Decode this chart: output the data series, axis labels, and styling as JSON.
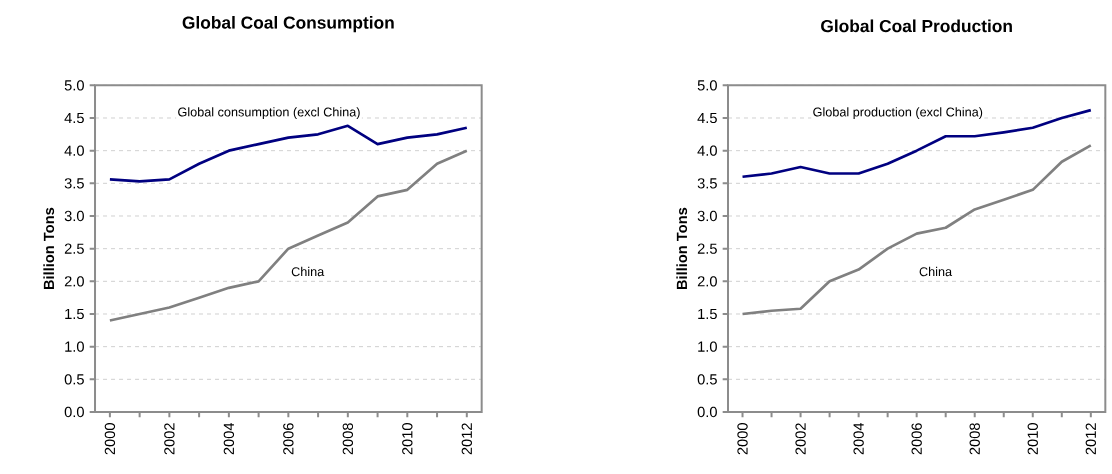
{
  "chart_data": [
    {
      "type": "line",
      "title": "Global Coal Consumption",
      "ylabel": "Billion Tons",
      "categories": [
        "2000",
        null,
        "2002",
        null,
        "2004",
        null,
        "2006",
        null,
        "2008",
        null,
        "2010",
        null,
        "2012"
      ],
      "ylim": [
        0,
        5
      ],
      "yticks": [
        {
          "value": 0,
          "label": "0.0"
        },
        {
          "value": 0.5,
          "label": "0.5"
        },
        {
          "value": 1,
          "label": "1.0"
        },
        {
          "value": 1.5,
          "label": "1.5"
        },
        {
          "value": 2,
          "label": "2.0"
        },
        {
          "value": 2.5,
          "label": "2.5"
        },
        {
          "value": 3,
          "label": "3.0"
        },
        {
          "value": 3.5,
          "label": "3.5"
        },
        {
          "value": 4,
          "label": "4.0"
        },
        {
          "value": 4.5,
          "label": "4.5"
        },
        {
          "value": 5,
          "label": "5.0"
        }
      ],
      "grid": "y",
      "series": [
        {
          "name": "Global consumption (excl China)",
          "color": "#000080",
          "values": [
            3.56,
            3.53,
            3.56,
            3.8,
            4.0,
            4.1,
            4.2,
            4.25,
            4.38,
            4.1,
            4.2,
            4.25,
            4.35
          ]
        },
        {
          "name": "China",
          "color": "#808080",
          "values": [
            1.4,
            1.5,
            1.6,
            1.75,
            1.9,
            2.0,
            2.5,
            2.7,
            2.9,
            3.3,
            3.4,
            3.8,
            4.0
          ]
        }
      ]
    },
    {
      "type": "line",
      "title": "Global Coal Production",
      "ylabel": "Billion Tons",
      "categories": [
        "2000",
        null,
        "2002",
        null,
        "2004",
        null,
        "2006",
        null,
        "2008",
        null,
        "2010",
        null,
        "2012"
      ],
      "ylim": [
        0,
        5
      ],
      "yticks": [
        {
          "value": 0,
          "label": "0.0"
        },
        {
          "value": 0.5,
          "label": "0.5"
        },
        {
          "value": 1,
          "label": "1.0"
        },
        {
          "value": 1.5,
          "label": "1.5"
        },
        {
          "value": 2,
          "label": "2.0"
        },
        {
          "value": 2.5,
          "label": "2.5"
        },
        {
          "value": 3,
          "label": "3.0"
        },
        {
          "value": 3.5,
          "label": "3.5"
        },
        {
          "value": 4,
          "label": "4.0"
        },
        {
          "value": 4.5,
          "label": "4.5"
        },
        {
          "value": 5,
          "label": "5.0"
        }
      ],
      "grid": "y",
      "series": [
        {
          "name": "Global production (excl China)",
          "color": "#000080",
          "values": [
            3.6,
            3.65,
            3.75,
            3.65,
            3.65,
            3.8,
            4.0,
            4.22,
            4.22,
            4.28,
            4.35,
            4.5,
            4.62
          ]
        },
        {
          "name": "China",
          "color": "#808080",
          "values": [
            1.5,
            1.55,
            1.58,
            2.0,
            2.18,
            2.5,
            2.73,
            2.82,
            3.1,
            3.25,
            3.4,
            3.83,
            4.08
          ]
        }
      ]
    }
  ]
}
